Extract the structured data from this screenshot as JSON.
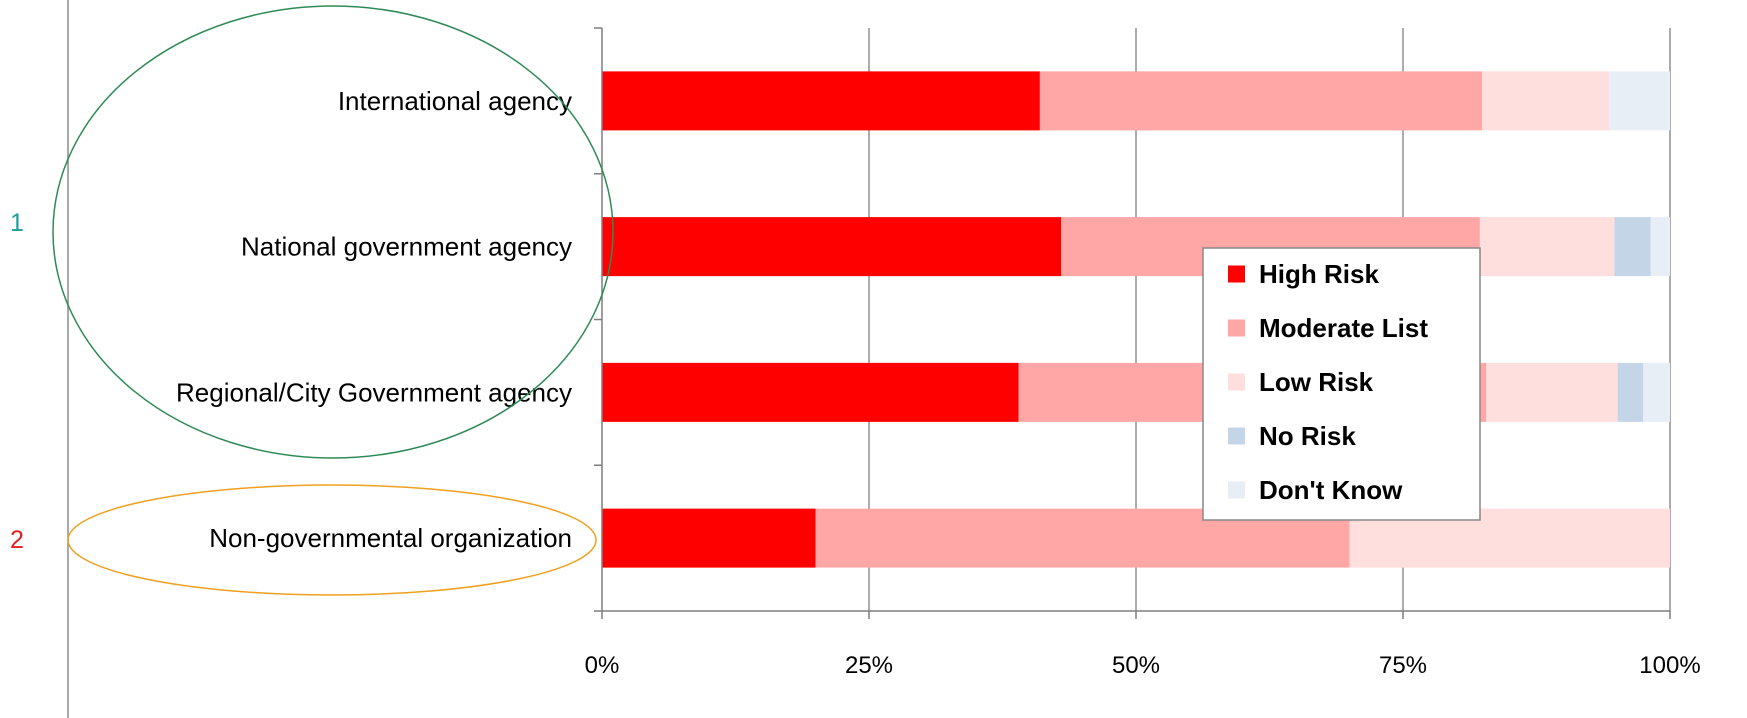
{
  "annotations": {
    "group1_label": "1",
    "group2_label": "2",
    "group1_color": "#1a9e9e",
    "group2_color": "#e02020",
    "ellipse1_color": "#2e8b57",
    "ellipse2_color": "#f0a020"
  },
  "chart_data": {
    "type": "bar",
    "orientation": "horizontal",
    "stacked": true,
    "percent_stacked": true,
    "categories": [
      "International agency",
      "National government agency",
      "Regional/City Government agency",
      "Non-governmental organization"
    ],
    "series": [
      {
        "name": "High Risk",
        "color": "#ff0000",
        "values": [
          41,
          43,
          39,
          20
        ]
      },
      {
        "name": "Moderate List",
        "color": "#ffa6a6",
        "values": [
          41.4,
          39.2,
          43.8,
          50
        ]
      },
      {
        "name": "Low Risk",
        "color": "#ffdede",
        "values": [
          11.9,
          12.6,
          12.3,
          30
        ]
      },
      {
        "name": "No Risk",
        "color": "#c5d5e8",
        "values": [
          0,
          3.4,
          2.4,
          0
        ]
      },
      {
        "name": "Don't Know",
        "color": "#e8eef6",
        "values": [
          5.7,
          1.8,
          2.5,
          0
        ]
      }
    ],
    "x_ticks": [
      "0%",
      "25%",
      "50%",
      "75%",
      "100%"
    ],
    "xlim": [
      0,
      100
    ],
    "xlabel": "",
    "ylabel": "",
    "title": "",
    "grid": true,
    "legend_position": "right-center"
  }
}
